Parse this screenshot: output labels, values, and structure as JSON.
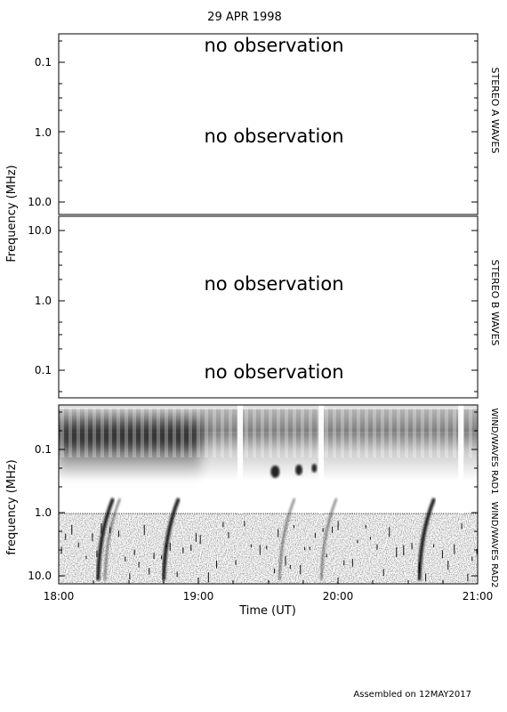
{
  "title": "29 APR 1998",
  "footer": "Assembled on 12MAY2017",
  "ylabel_top": "Frequency (MHz)",
  "chart_data": [
    {
      "type": "heatmap",
      "name": "STEREO A WAVES",
      "yscale": "log",
      "yticks": [
        "0.1",
        "1.0",
        "10.0"
      ],
      "ylim_mhz": [
        0.045,
        16.0
      ],
      "y_inverted": true,
      "messages": [
        "no observation",
        "no observation"
      ]
    },
    {
      "type": "heatmap",
      "name": "STEREO B WAVES",
      "yscale": "log",
      "yticks": [
        "10.0",
        "1.0",
        "0.1"
      ],
      "ylim_mhz": [
        0.045,
        16.0
      ],
      "y_inverted": false,
      "messages": [
        "no observation",
        "no observation"
      ]
    },
    {
      "type": "heatmap",
      "name": "WIND/WAVES RAD1 WIND/WAVES RAD2",
      "right_labels": [
        "WIND/WAVES RAD1",
        "WIND/WAVES RAD2"
      ],
      "ylabel": "frequency (MHz)",
      "yscale": "log",
      "yticks": [
        "0.1",
        "1.0",
        "10.0"
      ],
      "ylim_mhz": [
        0.02,
        13.8
      ],
      "y_inverted": true,
      "xlabel": "Time (UT)",
      "xticks": [
        "18:00",
        "19:00",
        "20:00",
        "21:00"
      ],
      "xlim_hours": [
        18.0,
        21.0
      ],
      "data_gaps_hours": [
        19.3,
        19.88,
        20.88
      ],
      "type_iii_bursts_hours": [
        18.3,
        18.35,
        18.77,
        19.6,
        19.9,
        20.6
      ]
    }
  ]
}
